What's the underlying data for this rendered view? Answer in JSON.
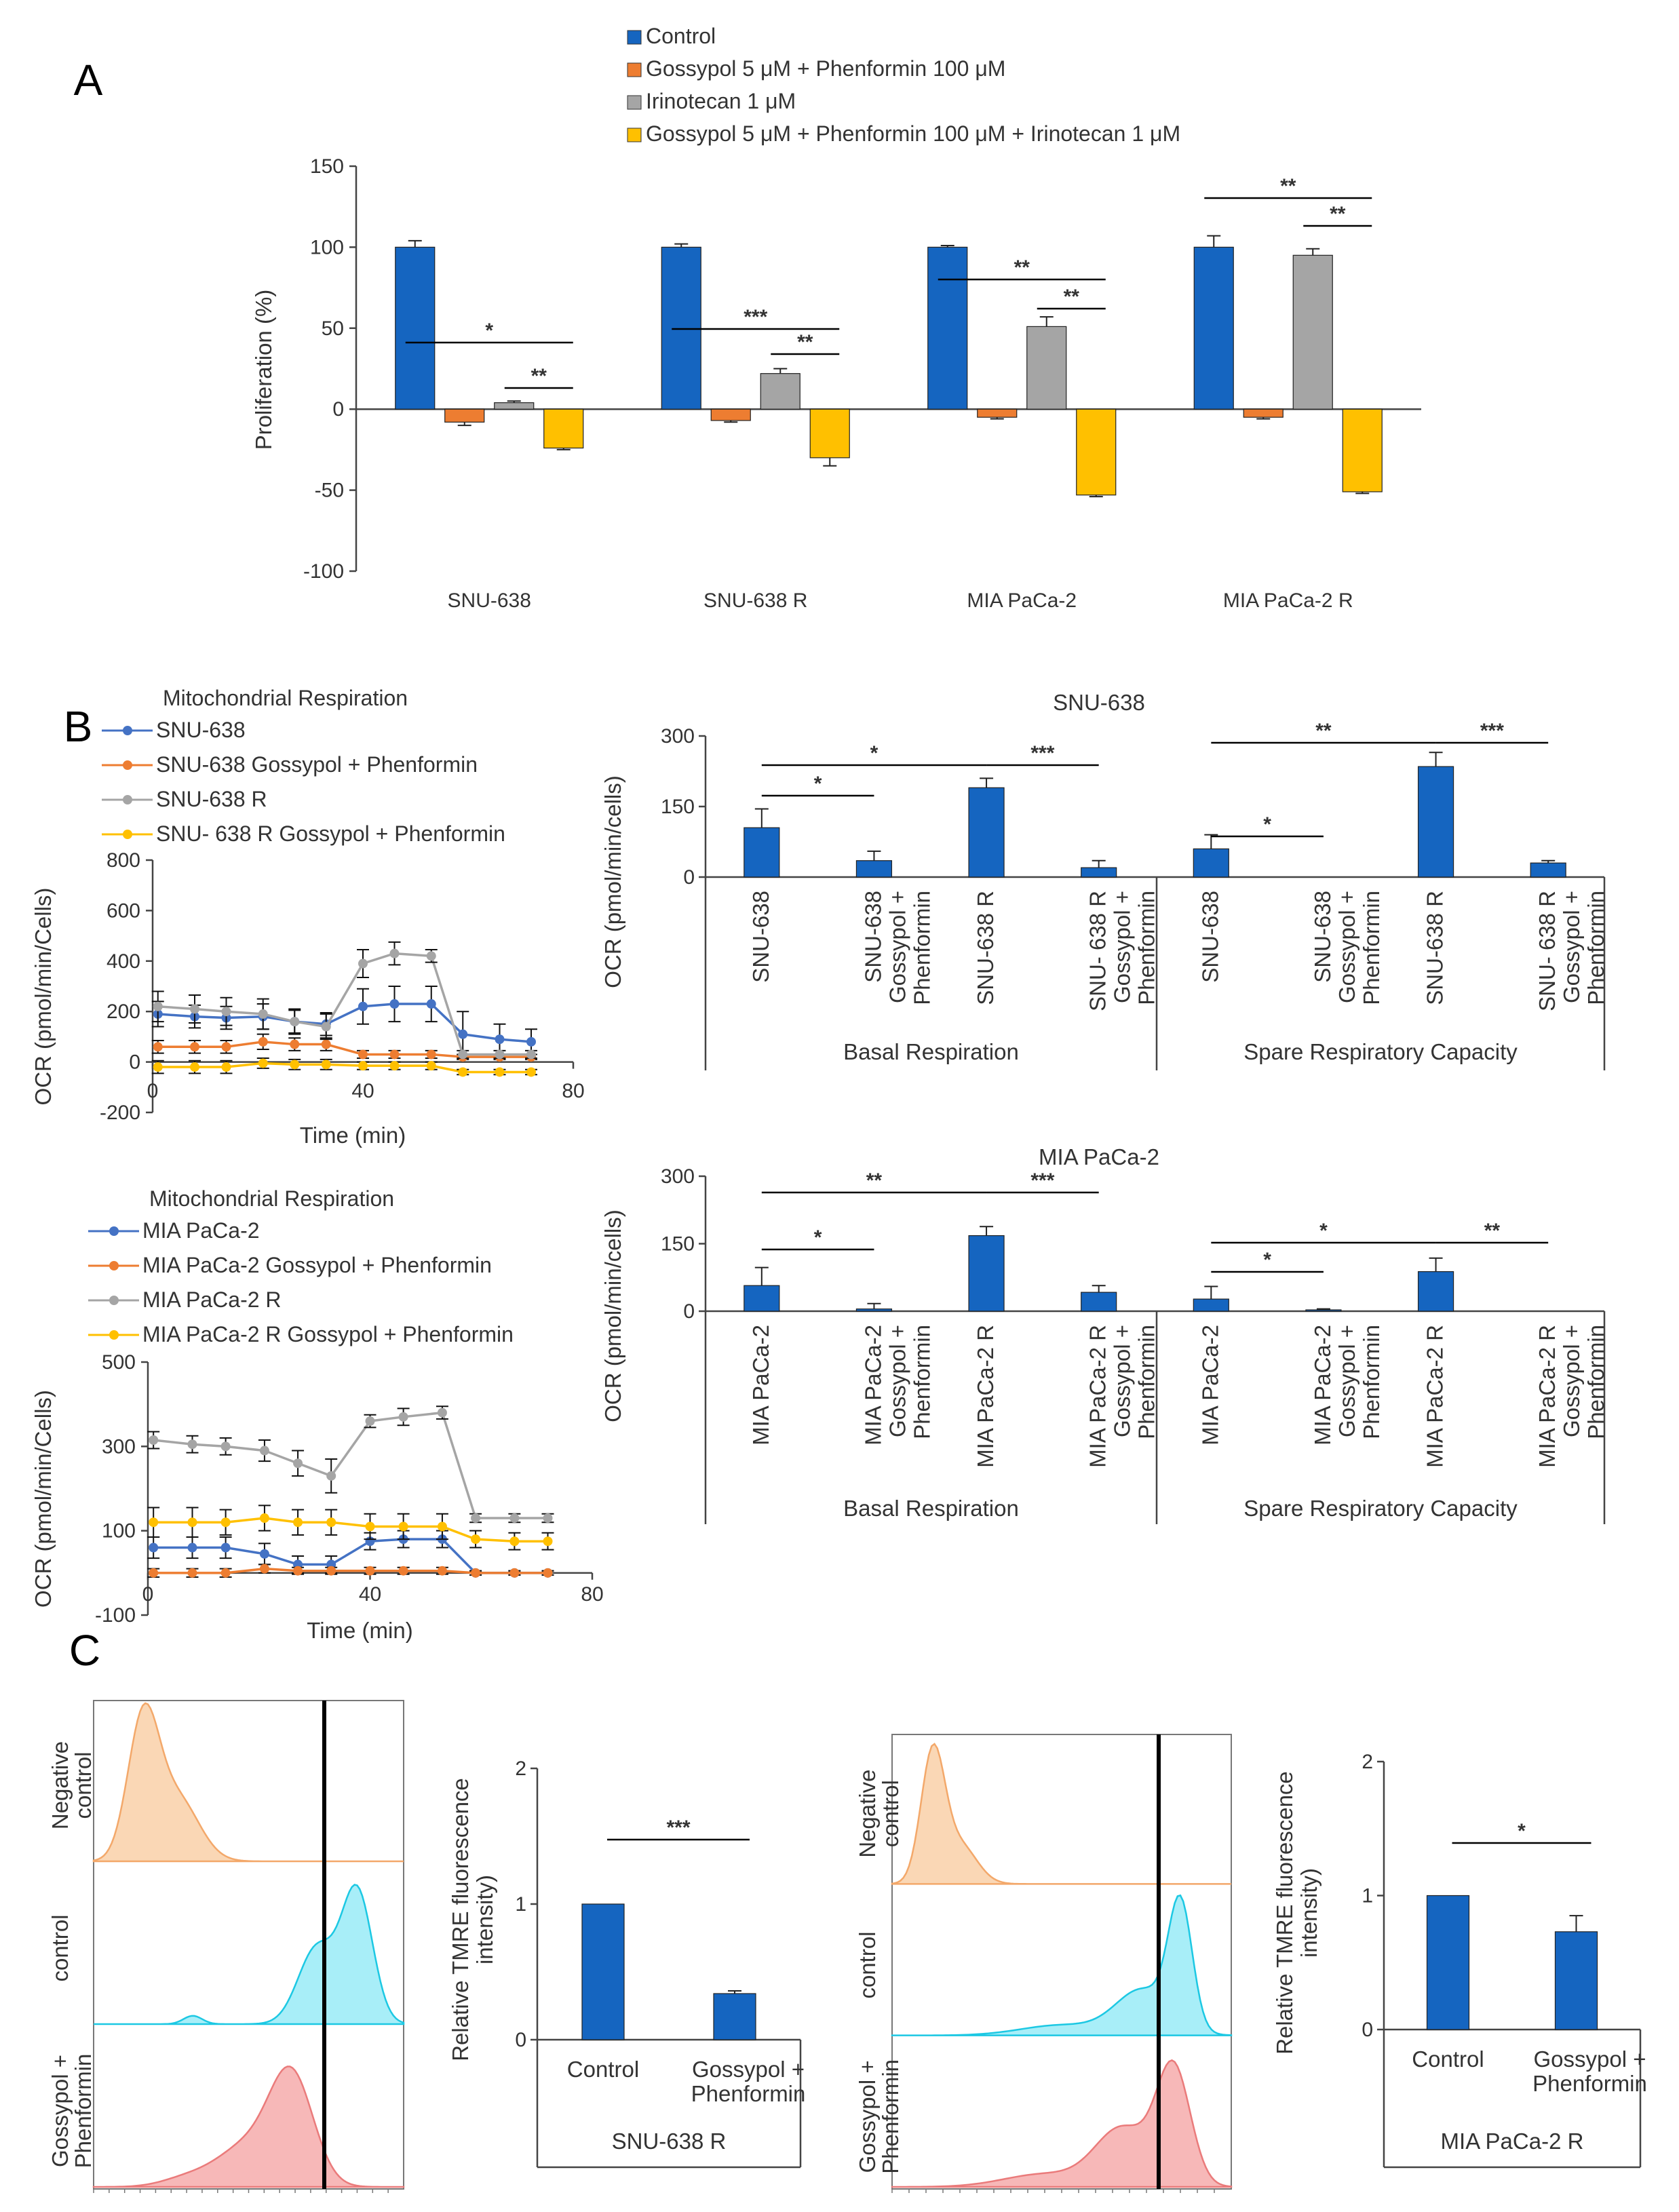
{
  "colors": {
    "blue": "#1565C0",
    "orange": "#ED7D31",
    "gray": "#A5A5A5",
    "yellow": "#FFC000",
    "line_blue": "#4472C4"
  },
  "chart_data": [
    {
      "id": "A",
      "panel_label": "A",
      "type": "bar",
      "ylabel": "Proliferation (%)",
      "ylim": [
        -100,
        150
      ],
      "yticks": [
        150,
        100,
        50,
        0,
        -50,
        -100
      ],
      "categories": [
        "SNU-638",
        "SNU-638 R",
        "MIA PaCa-2",
        "MIA PaCa-2 R"
      ],
      "series": [
        {
          "name": "Control",
          "values": [
            100,
            100,
            100,
            100
          ],
          "errors": [
            4,
            2,
            1,
            7
          ]
        },
        {
          "name": "Gossypol 5 μM + Phenformin 100 μM",
          "values": [
            -8,
            -7,
            -5,
            -5
          ],
          "errors": [
            2,
            1,
            1,
            1
          ]
        },
        {
          "name": "Irinotecan 1 μM",
          "values": [
            4,
            22,
            51,
            95
          ],
          "errors": [
            1,
            3,
            6,
            4
          ]
        },
        {
          "name": "Gossypol 5 μM + Phenformin 100 μM + Irinotecan 1 μM",
          "values": [
            -24,
            -30,
            -53,
            -51
          ],
          "errors": [
            1,
            5,
            1,
            1
          ]
        }
      ],
      "significance": [
        {
          "group": 0,
          "from": 0,
          "to": 3,
          "label": "*"
        },
        {
          "group": 0,
          "from": 2,
          "to": 3,
          "label": "**"
        },
        {
          "group": 1,
          "from": 0,
          "to": 3,
          "label": "***"
        },
        {
          "group": 1,
          "from": 2,
          "to": 3,
          "label": "**"
        },
        {
          "group": 2,
          "from": 0,
          "to": 3,
          "label": "**"
        },
        {
          "group": 2,
          "from": 2,
          "to": 3,
          "label": "**"
        },
        {
          "group": 3,
          "from": 0,
          "to": 3,
          "label": "**"
        },
        {
          "group": 3,
          "from": 2,
          "to": 3,
          "label": "**"
        }
      ]
    },
    {
      "id": "B1",
      "panel_label": "B",
      "type": "line",
      "legend_title": "Mitochondrial Respiration",
      "xlabel": "Time  (min)",
      "ylabel": "OCR (pmol/min/Cells)",
      "xlim": [
        0,
        80
      ],
      "ylim": [
        -200,
        800
      ],
      "xticks": [
        0,
        40,
        80
      ],
      "yticks": [
        800,
        600,
        400,
        200,
        0,
        -200
      ],
      "x": [
        1,
        8,
        14,
        21,
        27,
        33,
        40,
        46,
        53,
        59,
        66,
        72
      ],
      "series": [
        {
          "name": "SNU-638",
          "values": [
            190,
            180,
            175,
            180,
            160,
            150,
            220,
            230,
            230,
            110,
            90,
            80
          ],
          "errors": [
            50,
            45,
            45,
            50,
            45,
            45,
            70,
            70,
            70,
            90,
            60,
            50
          ]
        },
        {
          "name": "SNU-638 Gossypol + Phenformin",
          "values": [
            60,
            60,
            60,
            80,
            70,
            70,
            30,
            30,
            30,
            20,
            20,
            20
          ],
          "errors": [
            25,
            25,
            25,
            30,
            25,
            25,
            15,
            15,
            15,
            10,
            10,
            10
          ]
        },
        {
          "name": "SNU-638 R",
          "values": [
            220,
            210,
            200,
            190,
            160,
            140,
            390,
            430,
            420,
            30,
            30,
            30
          ],
          "errors": [
            60,
            55,
            55,
            60,
            50,
            50,
            55,
            45,
            25,
            15,
            15,
            15
          ]
        },
        {
          "name": "SNU- 638 R  Gossypol + Phenformin",
          "values": [
            -20,
            -20,
            -20,
            -5,
            -10,
            -10,
            -15,
            -15,
            -15,
            -40,
            -40,
            -40
          ],
          "errors": [
            25,
            25,
            25,
            20,
            20,
            20,
            15,
            15,
            15,
            10,
            10,
            10
          ]
        }
      ]
    },
    {
      "id": "B2",
      "type": "bar",
      "title": "SNU-638",
      "ylabel": "OCR (pmol/min/cells)",
      "ylim": [
        0,
        300
      ],
      "yticks": [
        300,
        150,
        0
      ],
      "groups": [
        "Basal Respiration",
        "Spare Respiratory Capacity"
      ],
      "categories": [
        "SNU-638",
        "SNU-638 Gossypol + Phenformin",
        "SNU-638 R",
        "SNU- 638 R Gossypol + Phenformin",
        "SNU-638",
        "SNU-638 Gossypol + Phenformin",
        "SNU-638 R",
        "SNU- 638 R Gossypol + Phenformin"
      ],
      "values": [
        105,
        35,
        190,
        20,
        60,
        0,
        235,
        30
      ],
      "errors": [
        40,
        20,
        20,
        15,
        30,
        0,
        30,
        5
      ],
      "significance": [
        {
          "from": 0,
          "to": 1,
          "label": "*"
        },
        {
          "from": 0,
          "to": 2,
          "label": "*"
        },
        {
          "from": 2,
          "to": 3,
          "label": "***"
        },
        {
          "from": 4,
          "to": 5,
          "label": "*"
        },
        {
          "from": 4,
          "to": 6,
          "label": "**"
        },
        {
          "from": 6,
          "to": 7,
          "label": "***"
        }
      ]
    },
    {
      "id": "B3",
      "type": "line",
      "legend_title": "Mitochondrial Respiration",
      "xlabel": "Time  (min)",
      "ylabel": "OCR (pmol/min/Cells)",
      "xlim": [
        0,
        80
      ],
      "ylim": [
        -100,
        500
      ],
      "xticks": [
        0,
        40,
        80
      ],
      "yticks": [
        500,
        300,
        100,
        -100
      ],
      "x": [
        1,
        8,
        14,
        21,
        27,
        33,
        40,
        46,
        53,
        59,
        66,
        72
      ],
      "series": [
        {
          "name": "MIA PaCa-2",
          "values": [
            60,
            60,
            60,
            45,
            20,
            20,
            75,
            80,
            80,
            0,
            0,
            0
          ],
          "errors": [
            25,
            25,
            25,
            25,
            20,
            20,
            20,
            20,
            20,
            5,
            5,
            5
          ]
        },
        {
          "name": "MIA PaCa-2  Gossypol + Phenformin",
          "values": [
            0,
            0,
            0,
            10,
            5,
            5,
            5,
            5,
            5,
            0,
            0,
            0
          ],
          "errors": [
            10,
            10,
            10,
            10,
            8,
            8,
            8,
            8,
            8,
            5,
            5,
            5
          ]
        },
        {
          "name": "MIA PaCa-2 R",
          "values": [
            315,
            305,
            300,
            290,
            260,
            230,
            360,
            370,
            380,
            130,
            130,
            130
          ],
          "errors": [
            20,
            20,
            20,
            25,
            30,
            40,
            15,
            20,
            15,
            10,
            10,
            10
          ]
        },
        {
          "name": "MIA PaCa-2 R  Gossypol + Phenformin",
          "values": [
            120,
            120,
            120,
            130,
            120,
            120,
            110,
            110,
            110,
            80,
            75,
            75
          ],
          "errors": [
            35,
            35,
            30,
            30,
            30,
            30,
            30,
            30,
            30,
            20,
            20,
            20
          ]
        }
      ]
    },
    {
      "id": "B4",
      "type": "bar",
      "title": "MIA  PaCa-2",
      "ylabel": "OCR (pmol/min/cells)",
      "ylim": [
        0,
        300
      ],
      "yticks": [
        300,
        150,
        0
      ],
      "groups": [
        "Basal Respiration",
        "Spare Respiratory Capacity"
      ],
      "categories": [
        "MIA PaCa-2",
        "MIA PaCa-2 Gossypol + Phenformin",
        "MIA PaCa-2 R",
        "MIA PaCa-2 R Gossypol + Phenformin",
        "MIA PaCa-2",
        "MIA PaCa-2 Gossypol + Phenformin",
        "MIA PaCa-2 R",
        "MIA PaCa-2 R Gossypol + Phenformin"
      ],
      "values": [
        57,
        5,
        168,
        42,
        27,
        3,
        88,
        0
      ],
      "errors": [
        40,
        12,
        20,
        15,
        28,
        2,
        30,
        0
      ],
      "significance": [
        {
          "from": 0,
          "to": 1,
          "label": "*"
        },
        {
          "from": 0,
          "to": 2,
          "label": "**"
        },
        {
          "from": 2,
          "to": 3,
          "label": "***"
        },
        {
          "from": 4,
          "to": 5,
          "label": "*"
        },
        {
          "from": 4,
          "to": 6,
          "label": "*"
        },
        {
          "from": 6,
          "to": 7,
          "label": "**"
        }
      ]
    },
    {
      "id": "C1",
      "panel_label": "C",
      "type": "area",
      "track_labels": [
        "Negative\ncontrol",
        "control",
        "Gossypol +\nPhenformin"
      ]
    },
    {
      "id": "C2",
      "type": "bar",
      "title": "SNU-638 R",
      "ylabel": "Relative TMRE fluorescence intensity)",
      "ylim": [
        0,
        2
      ],
      "yticks": [
        2,
        1,
        0
      ],
      "categories": [
        "Control",
        "Gossypol +\nPhenformin"
      ],
      "values": [
        1.0,
        0.34
      ],
      "errors": [
        0,
        0.02
      ],
      "significance": [
        {
          "from": 0,
          "to": 1,
          "label": "***"
        }
      ]
    },
    {
      "id": "C3",
      "type": "area",
      "track_labels": [
        "Negative\ncontrol",
        "control",
        "Gossypol +\nPhenformin"
      ]
    },
    {
      "id": "C4",
      "type": "bar",
      "title": "MIA PaCa-2 R",
      "ylabel": "Relative TMRE fluorescence intensity)",
      "ylim": [
        0,
        2
      ],
      "yticks": [
        2,
        1,
        0
      ],
      "categories": [
        "Control",
        "Gossypol +\nPhenformin"
      ],
      "values": [
        1.0,
        0.73
      ],
      "errors": [
        0,
        0.12
      ],
      "significance": [
        {
          "from": 0,
          "to": 1,
          "label": "*"
        }
      ]
    }
  ]
}
